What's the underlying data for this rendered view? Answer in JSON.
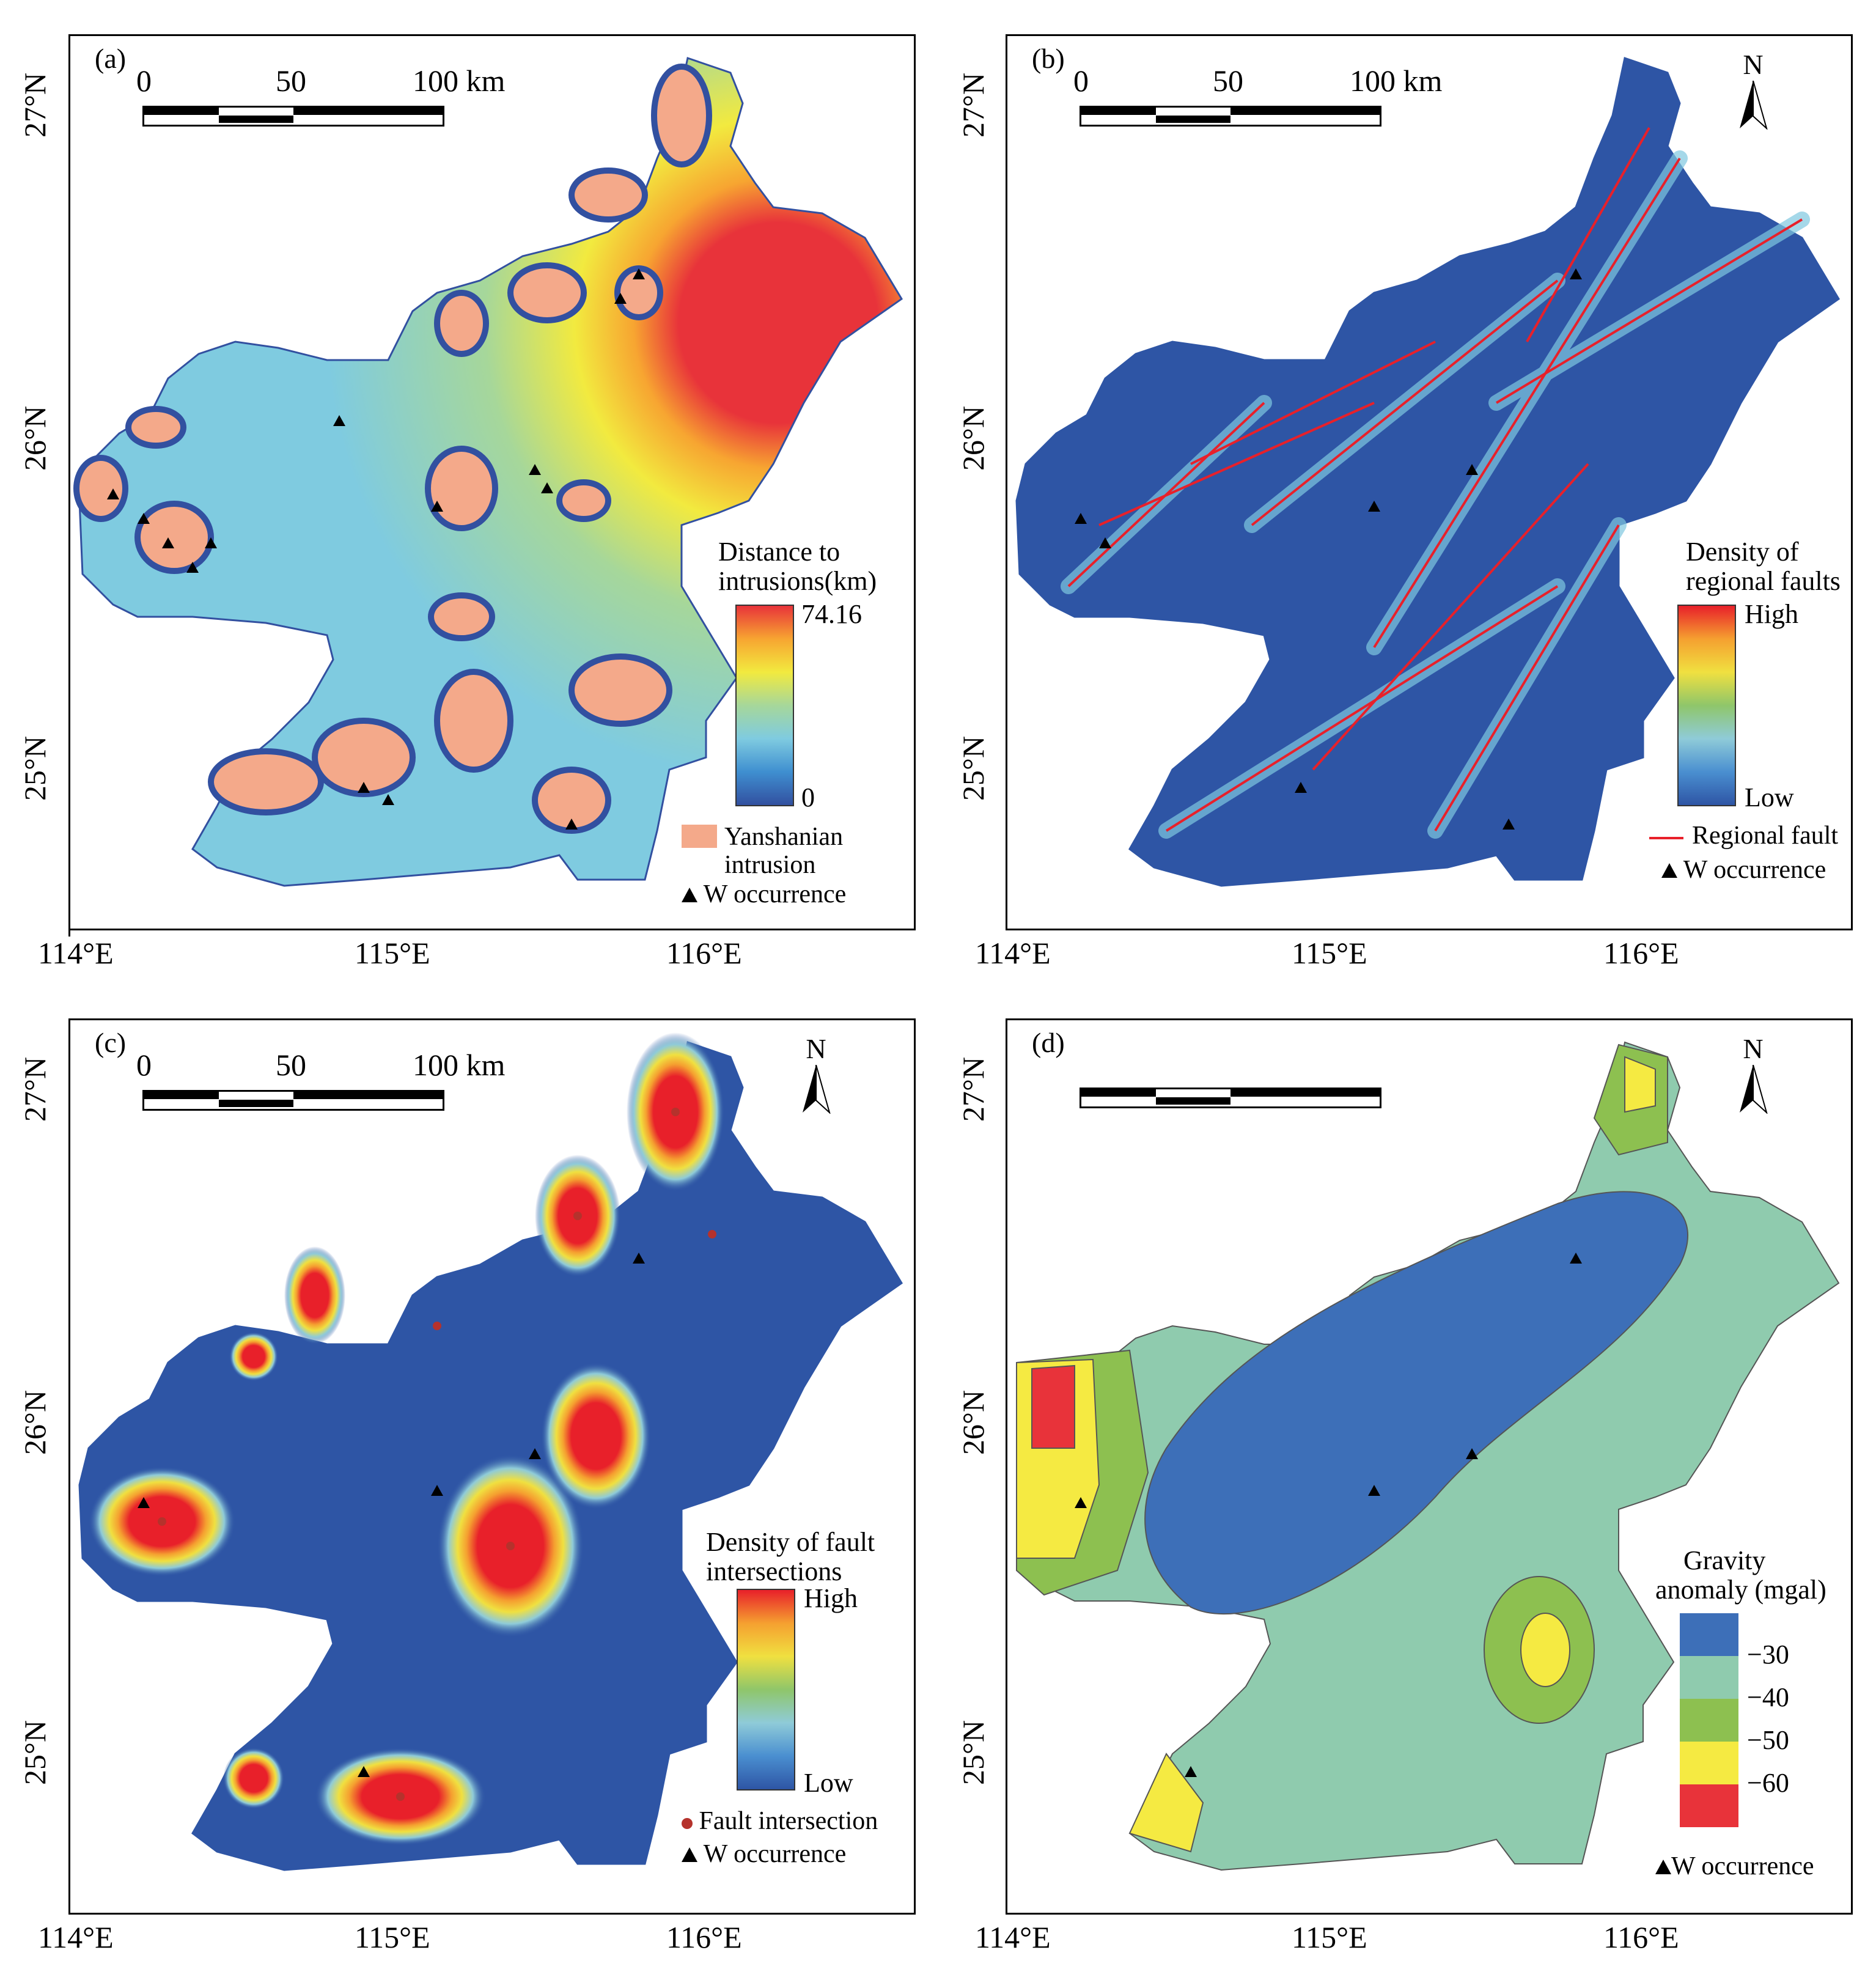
{
  "axes": {
    "lat_labels": [
      "27°N",
      "26°N",
      "25°N"
    ],
    "lon_labels": [
      "114°E",
      "115°E",
      "116°E"
    ]
  },
  "scale_bar": {
    "labels": [
      "0",
      "50",
      "100 km"
    ]
  },
  "north_label": "N",
  "panels": {
    "a": {
      "label": "(a)",
      "legend_title_1": "Distance to",
      "legend_title_2": "intrusions(km)",
      "max_label": "74.16",
      "min_label": "0",
      "intrusion_label_1": "Yanshanian",
      "intrusion_label_2": "intrusion",
      "occurrence_label": "W occurrence",
      "intrusion_color": "#F4A98A"
    },
    "b": {
      "label": "(b)",
      "legend_title_1": "Density of",
      "legend_title_2": "regional faults",
      "high_label": "High",
      "low_label": "Low",
      "fault_label": "Regional fault",
      "occurrence_label": "W occurrence",
      "fault_color": "#E8202A"
    },
    "c": {
      "label": "(c)",
      "legend_title_1": "Density of fault",
      "legend_title_2": "intersections",
      "high_label": "High",
      "low_label": "Low",
      "intersection_label": "Fault intersection",
      "occurrence_label": "W occurrence",
      "intersection_color": "#B5322C"
    },
    "d": {
      "label": "(d)",
      "legend_title_1": "Gravity",
      "legend_title_2": "anomaly (mgal)",
      "class_labels": [
        "−30",
        "−40",
        "−50",
        "−60"
      ],
      "class_colors": [
        "#3D6FB8",
        "#8FCBAE",
        "#8DC050",
        "#F5EA42",
        "#E8333A"
      ],
      "occurrence_label": "W occurrence"
    }
  },
  "colors": {
    "ramp_distance": [
      "#3250A0",
      "#3F8FD0",
      "#7FCBE0",
      "#A6D79A",
      "#F2EA3F",
      "#F7A531",
      "#E8333A"
    ],
    "ramp_density": [
      "#2E55A5",
      "#4A8FD0",
      "#8FCBD8",
      "#8FC66A",
      "#F0E040",
      "#F5A030",
      "#E8202A"
    ]
  }
}
